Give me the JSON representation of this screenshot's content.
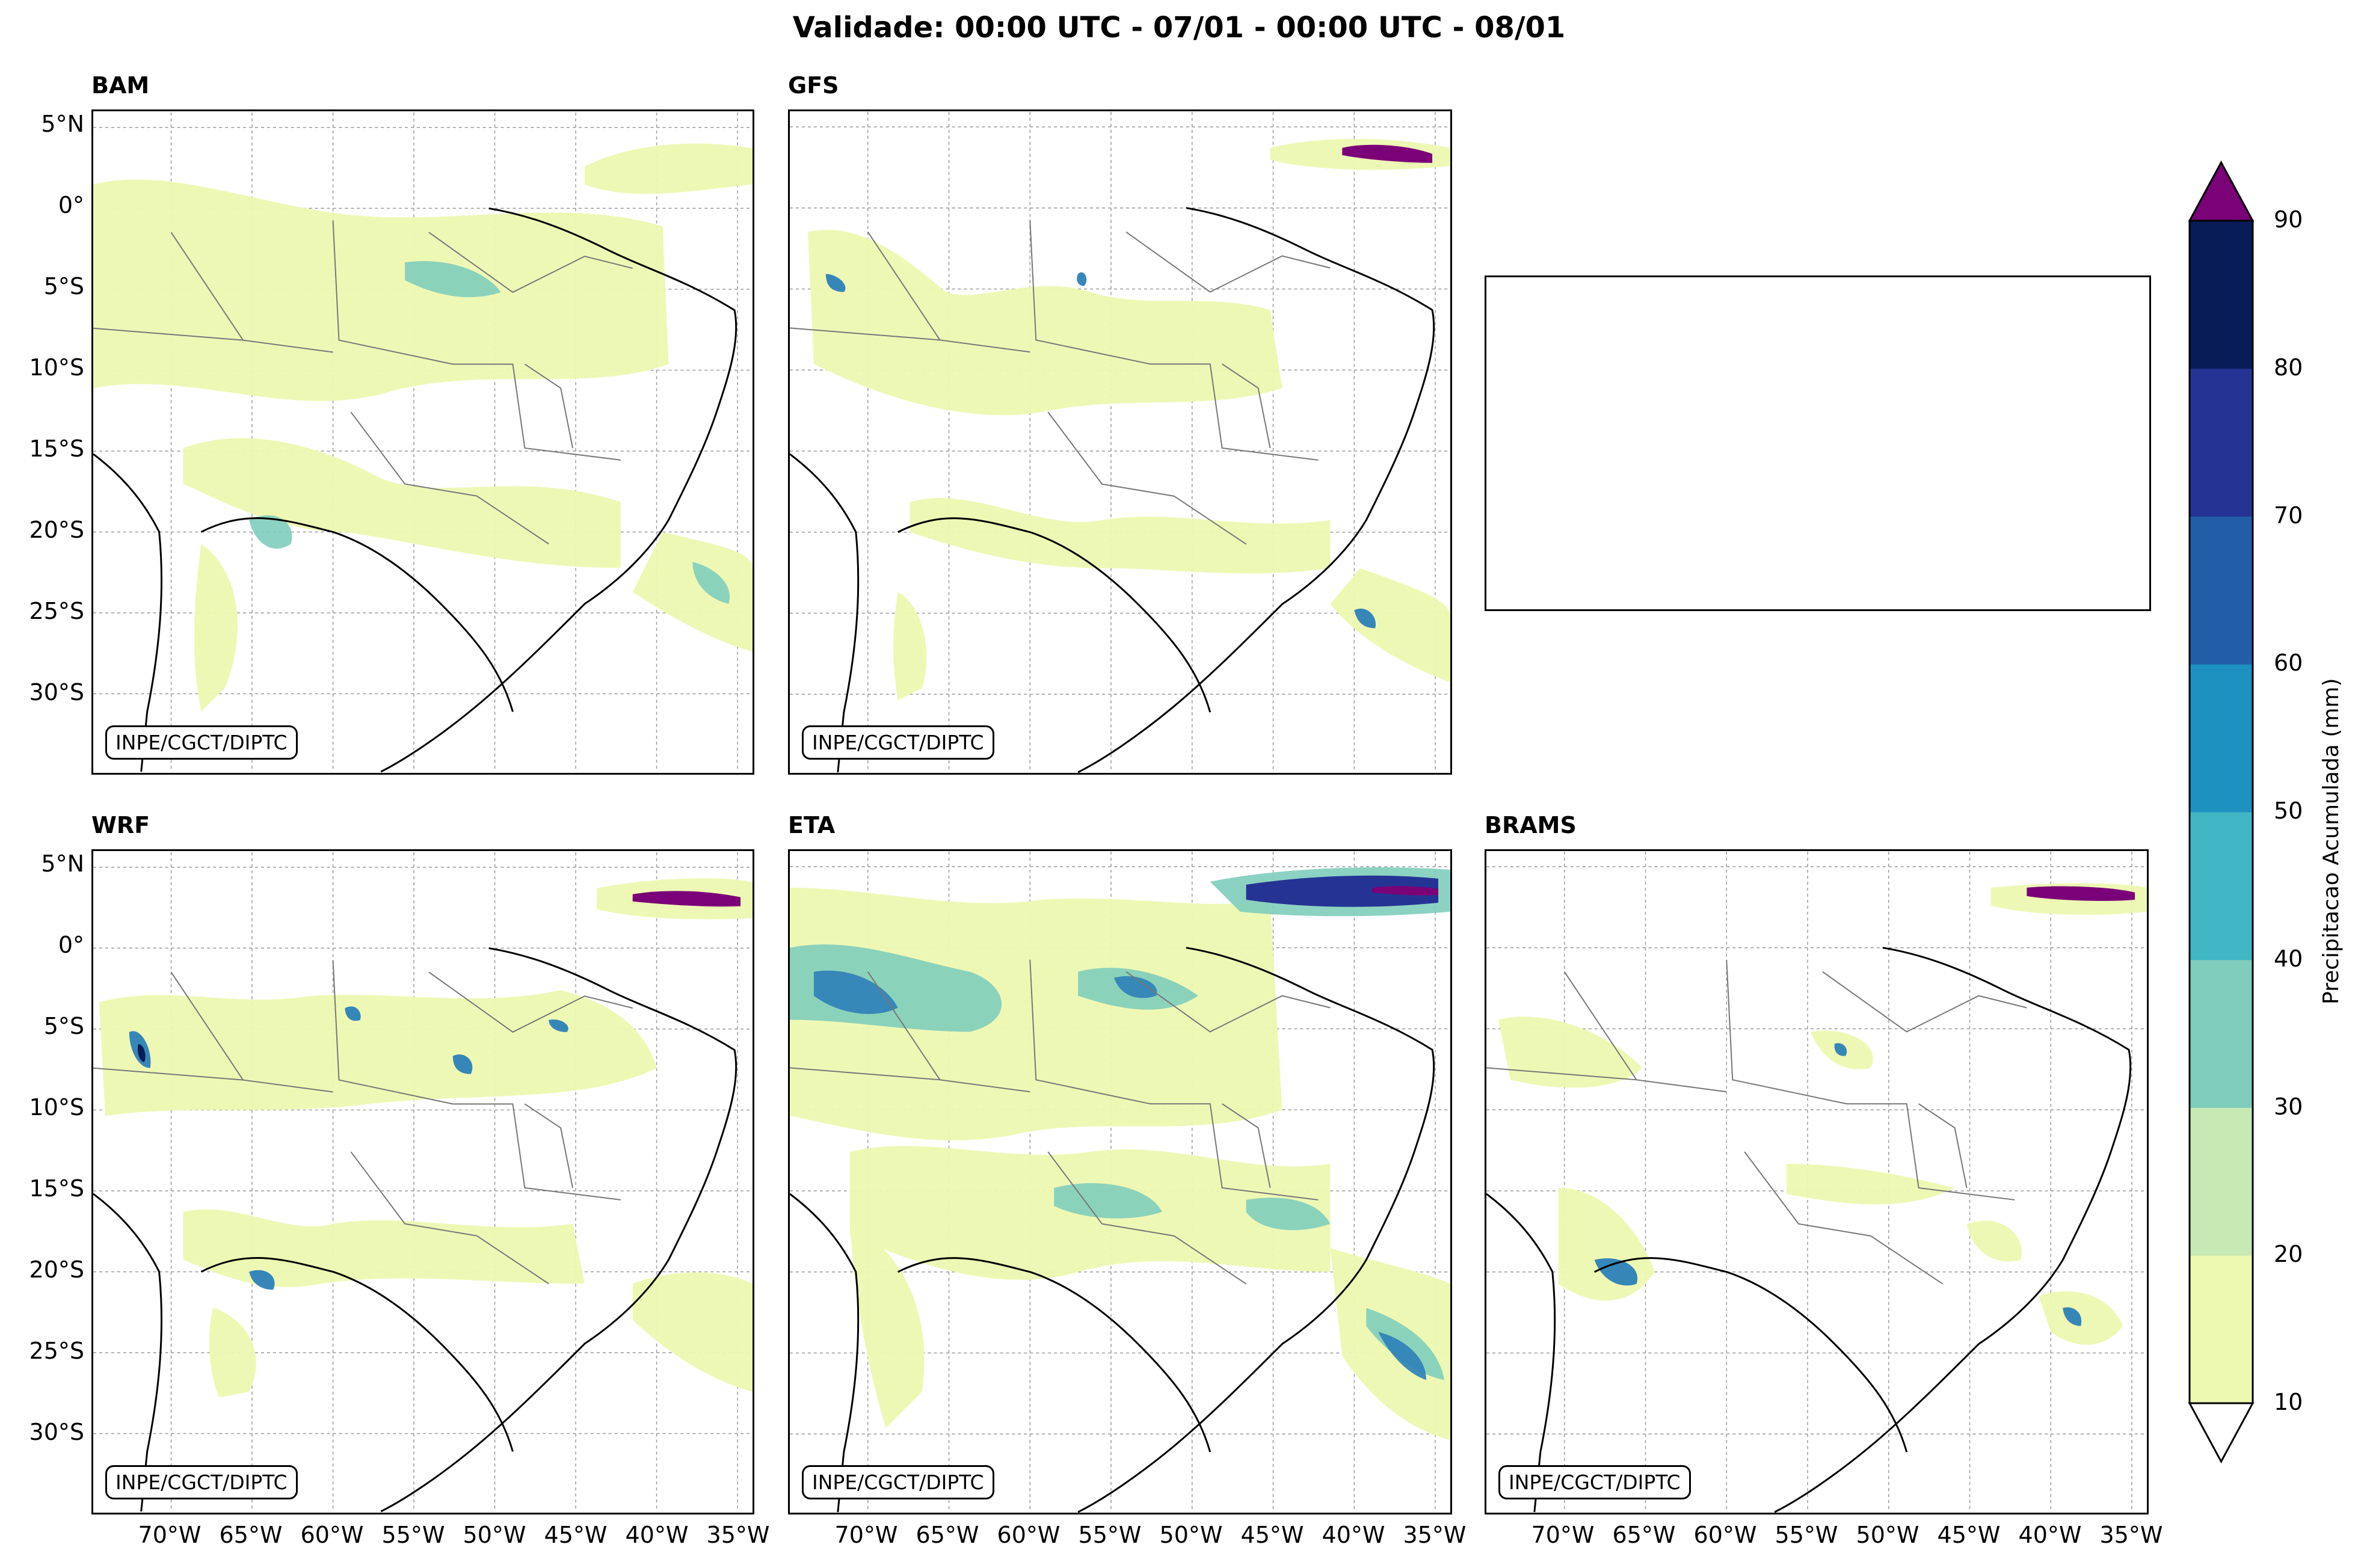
{
  "title": "Validade: 00:00 UTC - 07/01 - 00:00 UTC - 08/01",
  "credit": "INPE/CGCT/DIPTC",
  "panels": [
    {
      "name": "BAM"
    },
    {
      "name": "GFS"
    },
    {
      "name": "WRF"
    },
    {
      "name": "ETA"
    },
    {
      "name": "BRAMS"
    }
  ],
  "lat_labels": [
    "5°N",
    "0°",
    "5°S",
    "10°S",
    "15°S",
    "20°S",
    "25°S",
    "30°S"
  ],
  "lon_labels": [
    "70°W",
    "65°W",
    "60°W",
    "55°W",
    "50°W",
    "45°W",
    "40°W",
    "35°W"
  ],
  "colorbar": {
    "label": "Precipitacao Acumulada (mm)",
    "ticks": [
      "10",
      "20",
      "30",
      "40",
      "50",
      "60",
      "70",
      "80",
      "90"
    ],
    "colors": [
      "#edf8b1",
      "#c7e9b4",
      "#7fcdbb",
      "#41b6c4",
      "#1d91c0",
      "#225ea8",
      "#253494",
      "#081d58"
    ],
    "over_color": "#7a0177",
    "under_color": "#ffffff"
  }
}
